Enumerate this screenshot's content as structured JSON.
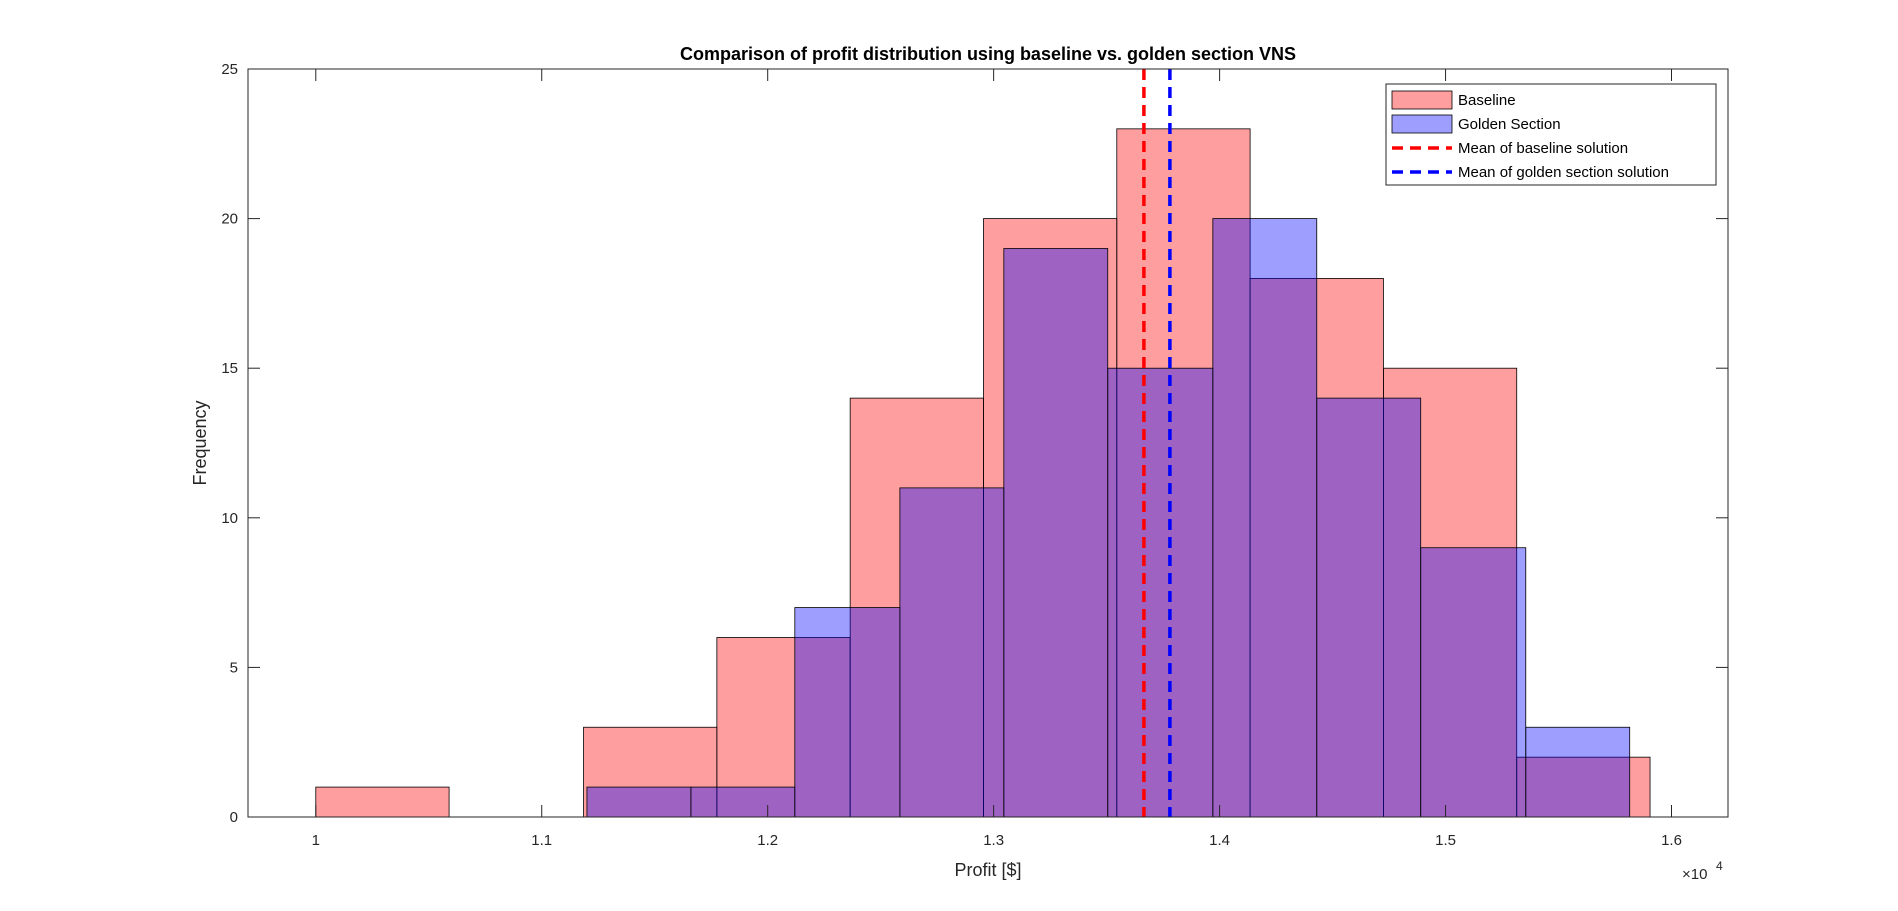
{
  "chart_data": {
    "type": "bar",
    "title": "Comparison of profit distribution using baseline vs. golden section VNS",
    "xlabel": "Profit [$]",
    "ylabel": "Frequency",
    "x_exponent_label": "×10",
    "x_exponent_power": "4",
    "xlim": [
      0.97,
      1.625
    ],
    "ylim": [
      0,
      25
    ],
    "x_ticks": [
      1,
      1.1,
      1.2,
      1.3,
      1.4,
      1.5,
      1.6
    ],
    "x_tick_labels": [
      "1",
      "1.1",
      "1.2",
      "1.3",
      "1.4",
      "1.5",
      "1.6"
    ],
    "y_ticks": [
      0,
      5,
      10,
      15,
      20,
      25
    ],
    "y_tick_labels": [
      "0",
      "5",
      "10",
      "15",
      "20",
      "25"
    ],
    "grid": false,
    "legend_position": "top-right",
    "series": [
      {
        "name": "Baseline",
        "color": "#ff0000",
        "bins": [
          {
            "x0": 1.0,
            "x1": 1.059,
            "value": 1
          },
          {
            "x0": 1.059,
            "x1": 1.1185,
            "value": 0
          },
          {
            "x0": 1.1185,
            "x1": 1.1775,
            "value": 3
          },
          {
            "x0": 1.1775,
            "x1": 1.2365,
            "value": 6
          },
          {
            "x0": 1.2365,
            "x1": 1.2955,
            "value": 14
          },
          {
            "x0": 1.2955,
            "x1": 1.3545,
            "value": 20
          },
          {
            "x0": 1.3545,
            "x1": 1.4135,
            "value": 23
          },
          {
            "x0": 1.4135,
            "x1": 1.4725,
            "value": 18
          },
          {
            "x0": 1.4725,
            "x1": 1.5315,
            "value": 15
          },
          {
            "x0": 1.5315,
            "x1": 1.5905,
            "value": 2
          }
        ]
      },
      {
        "name": "Golden Section",
        "color": "#0000ff",
        "bins": [
          {
            "x0": 1.12,
            "x1": 1.166,
            "value": 1
          },
          {
            "x0": 1.166,
            "x1": 1.212,
            "value": 1
          },
          {
            "x0": 1.212,
            "x1": 1.2585,
            "value": 7
          },
          {
            "x0": 1.2585,
            "x1": 1.3045,
            "value": 11
          },
          {
            "x0": 1.3045,
            "x1": 1.3505,
            "value": 19
          },
          {
            "x0": 1.3505,
            "x1": 1.397,
            "value": 15
          },
          {
            "x0": 1.397,
            "x1": 1.443,
            "value": 20
          },
          {
            "x0": 1.443,
            "x1": 1.489,
            "value": 14
          },
          {
            "x0": 1.489,
            "x1": 1.5355,
            "value": 9
          },
          {
            "x0": 1.5355,
            "x1": 1.5815,
            "value": 3
          }
        ]
      }
    ],
    "mean_lines": [
      {
        "name": "Mean of baseline solution",
        "x": 1.3665,
        "color": "#ff0000"
      },
      {
        "name": "Mean of golden section solution",
        "x": 1.378,
        "color": "#0000ff"
      }
    ]
  }
}
